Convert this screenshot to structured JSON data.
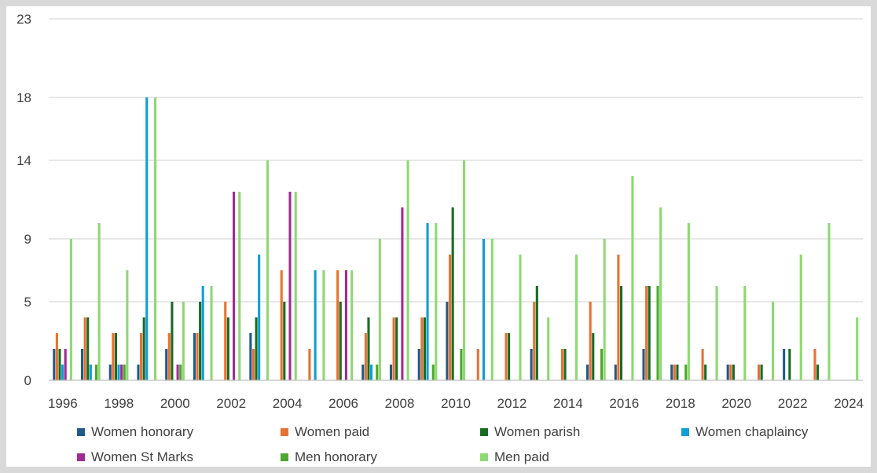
{
  "chart_data": {
    "type": "bar",
    "title": "",
    "xlabel": "",
    "ylabel": "",
    "ylim": [
      0,
      23
    ],
    "y_ticks": [
      0,
      5,
      9,
      14,
      18,
      23
    ],
    "x_tick_labels": [
      "1996",
      "1998",
      "2000",
      "2002",
      "2004",
      "2006",
      "2008",
      "2010",
      "2012",
      "2014",
      "2016",
      "2018",
      "2020",
      "2022",
      "2024"
    ],
    "grid": true,
    "legend_position": "bottom",
    "categories": [
      1996,
      1997,
      1998,
      1999,
      2000,
      2001,
      2002,
      2003,
      2004,
      2005,
      2006,
      2007,
      2008,
      2009,
      2010,
      2011,
      2012,
      2013,
      2014,
      2015,
      2016,
      2017,
      2018,
      2019,
      2020,
      2021,
      2022,
      2023,
      2024
    ],
    "series": [
      {
        "name": "Women honorary",
        "color": "#1f5a8a",
        "values": [
          2,
          2,
          1,
          1,
          2,
          3,
          0,
          3,
          0,
          0,
          0,
          1,
          1,
          2,
          5,
          0,
          0,
          2,
          0,
          1,
          1,
          2,
          1,
          0,
          1,
          0,
          2,
          0,
          0
        ]
      },
      {
        "name": "Women paid",
        "color": "#e97132",
        "values": [
          3,
          4,
          3,
          3,
          3,
          3,
          5,
          2,
          7,
          2,
          7,
          3,
          4,
          4,
          8,
          2,
          3,
          5,
          2,
          5,
          8,
          6,
          1,
          2,
          1,
          1,
          0,
          2,
          0
        ]
      },
      {
        "name": "Women parish",
        "color": "#196b24",
        "values": [
          2,
          4,
          3,
          4,
          5,
          5,
          4,
          4,
          5,
          0,
          5,
          4,
          4,
          4,
          11,
          0,
          3,
          6,
          2,
          3,
          6,
          6,
          1,
          1,
          1,
          1,
          2,
          1,
          0
        ]
      },
      {
        "name": "Women chaplaincy",
        "color": "#0f9ed5",
        "values": [
          1,
          1,
          1,
          18,
          0,
          6,
          0,
          8,
          0,
          7,
          0,
          1,
          0,
          10,
          0,
          9,
          0,
          0,
          0,
          0,
          0,
          0,
          0,
          0,
          0,
          0,
          0,
          0,
          0
        ]
      },
      {
        "name": "Women St Marks",
        "color": "#a02b93",
        "values": [
          2,
          0,
          1,
          0,
          1,
          0,
          12,
          0,
          12,
          0,
          7,
          0,
          11,
          0,
          0,
          0,
          0,
          0,
          0,
          0,
          0,
          0,
          0,
          0,
          0,
          0,
          0,
          0,
          0
        ]
      },
      {
        "name": "Men honorary",
        "color": "#4ea72e",
        "values": [
          0,
          1,
          1,
          0,
          1,
          0,
          0,
          0,
          0,
          0,
          0,
          1,
          0,
          1,
          2,
          0,
          0,
          0,
          0,
          2,
          0,
          6,
          1,
          0,
          0,
          0,
          0,
          0,
          0
        ]
      },
      {
        "name": "Men paid",
        "color": "#8ed973",
        "values": [
          9,
          10,
          7,
          18,
          5,
          6,
          12,
          14,
          12,
          7,
          7,
          9,
          14,
          10,
          14,
          9,
          8,
          4,
          8,
          9,
          13,
          11,
          10,
          6,
          6,
          5,
          8,
          10,
          4
        ]
      }
    ]
  }
}
